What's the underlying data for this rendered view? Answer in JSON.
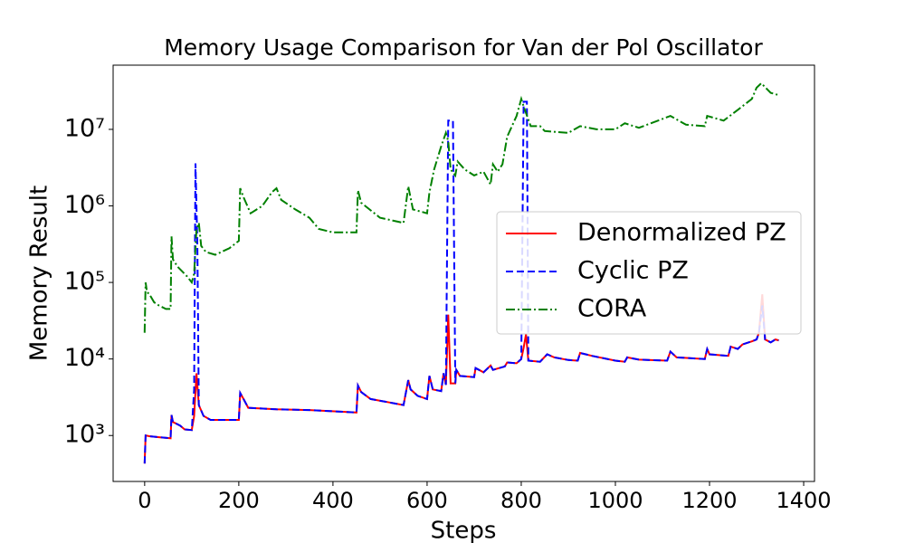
{
  "chart_data": {
    "type": "line",
    "title": "Memory Usage Comparison for Van der Pol Oscillator",
    "x_label": "Steps",
    "y_label": "Memory Result",
    "log_y": true,
    "xlim": [
      -67,
      1423
    ],
    "ylim": [
      251,
      69000000
    ],
    "xticks": [
      0,
      200,
      400,
      600,
      800,
      1000,
      1200,
      1400
    ],
    "yticks": [
      {
        "value": 1000,
        "label": "10³"
      },
      {
        "value": 10000,
        "label": "10⁴"
      },
      {
        "value": 100000,
        "label": "10⁵"
      },
      {
        "value": 1000000,
        "label": "10⁶"
      },
      {
        "value": 10000000,
        "label": "10⁷"
      }
    ],
    "legend": "center right",
    "series": [
      {
        "name": "Denormalized PZ",
        "color": "#ff0000",
        "dash": "solid",
        "x": [
          0,
          2,
          10,
          30,
          55,
          57,
          60,
          75,
          85,
          100,
          105,
          110,
          115,
          125,
          140,
          200,
          203,
          210,
          220,
          280,
          350,
          450,
          453,
          460,
          480,
          520,
          550,
          560,
          565,
          580,
          600,
          605,
          612,
          630,
          635,
          640,
          645,
          650,
          660,
          662,
          670,
          700,
          703,
          720,
          735,
          740,
          765,
          770,
          790,
          800,
          805,
          810,
          815,
          840,
          855,
          870,
          900,
          920,
          925,
          950,
          1000,
          1020,
          1025,
          1050,
          1110,
          1117,
          1130,
          1190,
          1195,
          1200,
          1240,
          1245,
          1260,
          1270,
          1290,
          1300,
          1305,
          1312,
          1318,
          1330,
          1340,
          1347
        ],
        "values": [
          430,
          1000,
          980,
          950,
          920,
          1850,
          1500,
          1350,
          1200,
          1180,
          1800,
          6500,
          2500,
          1800,
          1600,
          1600,
          3600,
          3000,
          2300,
          2200,
          2150,
          2000,
          4500,
          3700,
          3000,
          2700,
          2500,
          5300,
          4000,
          3300,
          3000,
          6000,
          4000,
          3800,
          6500,
          4600,
          38000,
          4800,
          4800,
          7200,
          6000,
          5800,
          7600,
          6700,
          8200,
          7200,
          8000,
          9000,
          8800,
          10000,
          14000,
          21000,
          9500,
          9200,
          11500,
          10500,
          9700,
          9500,
          12000,
          11000,
          9500,
          9200,
          10500,
          9800,
          9500,
          12500,
          10500,
          10000,
          13500,
          11500,
          11000,
          14500,
          13500,
          15500,
          17000,
          18000,
          22000,
          70000,
          18000,
          16500,
          18000,
          17500
        ]
      },
      {
        "name": "Cyclic PZ",
        "color": "#0000ff",
        "dash": "dashed",
        "x": [
          0,
          2,
          10,
          30,
          55,
          57,
          60,
          75,
          85,
          100,
          105,
          108,
          112,
          115,
          125,
          140,
          200,
          203,
          210,
          220,
          280,
          350,
          450,
          453,
          460,
          480,
          520,
          550,
          560,
          565,
          580,
          600,
          605,
          612,
          630,
          635,
          640,
          645,
          655,
          660,
          662,
          670,
          700,
          703,
          720,
          735,
          740,
          765,
          770,
          790,
          800,
          805,
          812,
          815,
          840,
          855,
          870,
          900,
          920,
          925,
          950,
          1000,
          1020,
          1025,
          1050,
          1110,
          1117,
          1130,
          1190,
          1195,
          1200,
          1240,
          1245,
          1260,
          1270,
          1290,
          1300,
          1305,
          1312,
          1318,
          1330,
          1340,
          1347
        ],
        "values": [
          430,
          1000,
          980,
          950,
          920,
          1850,
          1500,
          1350,
          1200,
          1180,
          4000,
          3600000,
          300000,
          2500,
          1800,
          1600,
          1600,
          3600,
          3000,
          2300,
          2200,
          2150,
          2000,
          4500,
          3700,
          3000,
          2700,
          2500,
          5300,
          4000,
          3300,
          3000,
          6000,
          4000,
          3800,
          6500,
          4600,
          13000000,
          13000000,
          4800,
          7200,
          6000,
          5800,
          7600,
          6700,
          8200,
          7200,
          8000,
          9000,
          8800,
          10000,
          23000000,
          23000000,
          9500,
          9200,
          11500,
          10500,
          9700,
          9500,
          12000,
          11000,
          9500,
          9200,
          10500,
          9800,
          9500,
          12500,
          10500,
          10000,
          13500,
          11500,
          11000,
          14500,
          13500,
          15500,
          17000,
          18000,
          22000,
          50000,
          18000,
          16500,
          18000,
          17500
        ]
      },
      {
        "name": "CORA",
        "color": "#008000",
        "dash": "dashdot",
        "x": [
          0,
          2,
          5,
          10,
          20,
          30,
          45,
          55,
          57,
          60,
          70,
          90,
          100,
          105,
          110,
          115,
          120,
          130,
          150,
          180,
          200,
          203,
          210,
          225,
          250,
          270,
          280,
          290,
          320,
          350,
          370,
          400,
          450,
          453,
          460,
          500,
          550,
          560,
          570,
          600,
          605,
          615,
          630,
          640,
          645,
          650,
          660,
          665,
          680,
          700,
          720,
          735,
          740,
          750,
          760,
          770,
          790,
          800,
          805,
          820,
          840,
          850,
          900,
          925,
          960,
          1000,
          1020,
          1050,
          1117,
          1150,
          1190,
          1195,
          1230,
          1260,
          1290,
          1300,
          1310,
          1330,
          1347
        ],
        "values": [
          22000,
          100000,
          75000,
          70000,
          55000,
          50000,
          45000,
          45000,
          400000,
          200000,
          160000,
          120000,
          100000,
          130000,
          500000,
          600000,
          300000,
          250000,
          230000,
          280000,
          350000,
          1700000,
          1300000,
          800000,
          1000000,
          1500000,
          1700000,
          1200000,
          900000,
          700000,
          500000,
          450000,
          450000,
          1600000,
          1100000,
          700000,
          600000,
          1800000,
          900000,
          800000,
          1500000,
          3000000,
          6000000,
          9000000,
          7000000,
          3000000,
          2500000,
          3800000,
          3000000,
          2500000,
          2800000,
          1900000,
          3500000,
          2800000,
          3500000,
          8000000,
          15000000,
          25000000,
          20000000,
          11000000,
          11000000,
          9500000,
          9000000,
          11000000,
          10000000,
          10000000,
          12000000,
          10500000,
          15000000,
          11500000,
          11000000,
          15000000,
          13000000,
          18000000,
          25000000,
          35000000,
          40000000,
          30000000,
          28000000
        ]
      }
    ]
  }
}
